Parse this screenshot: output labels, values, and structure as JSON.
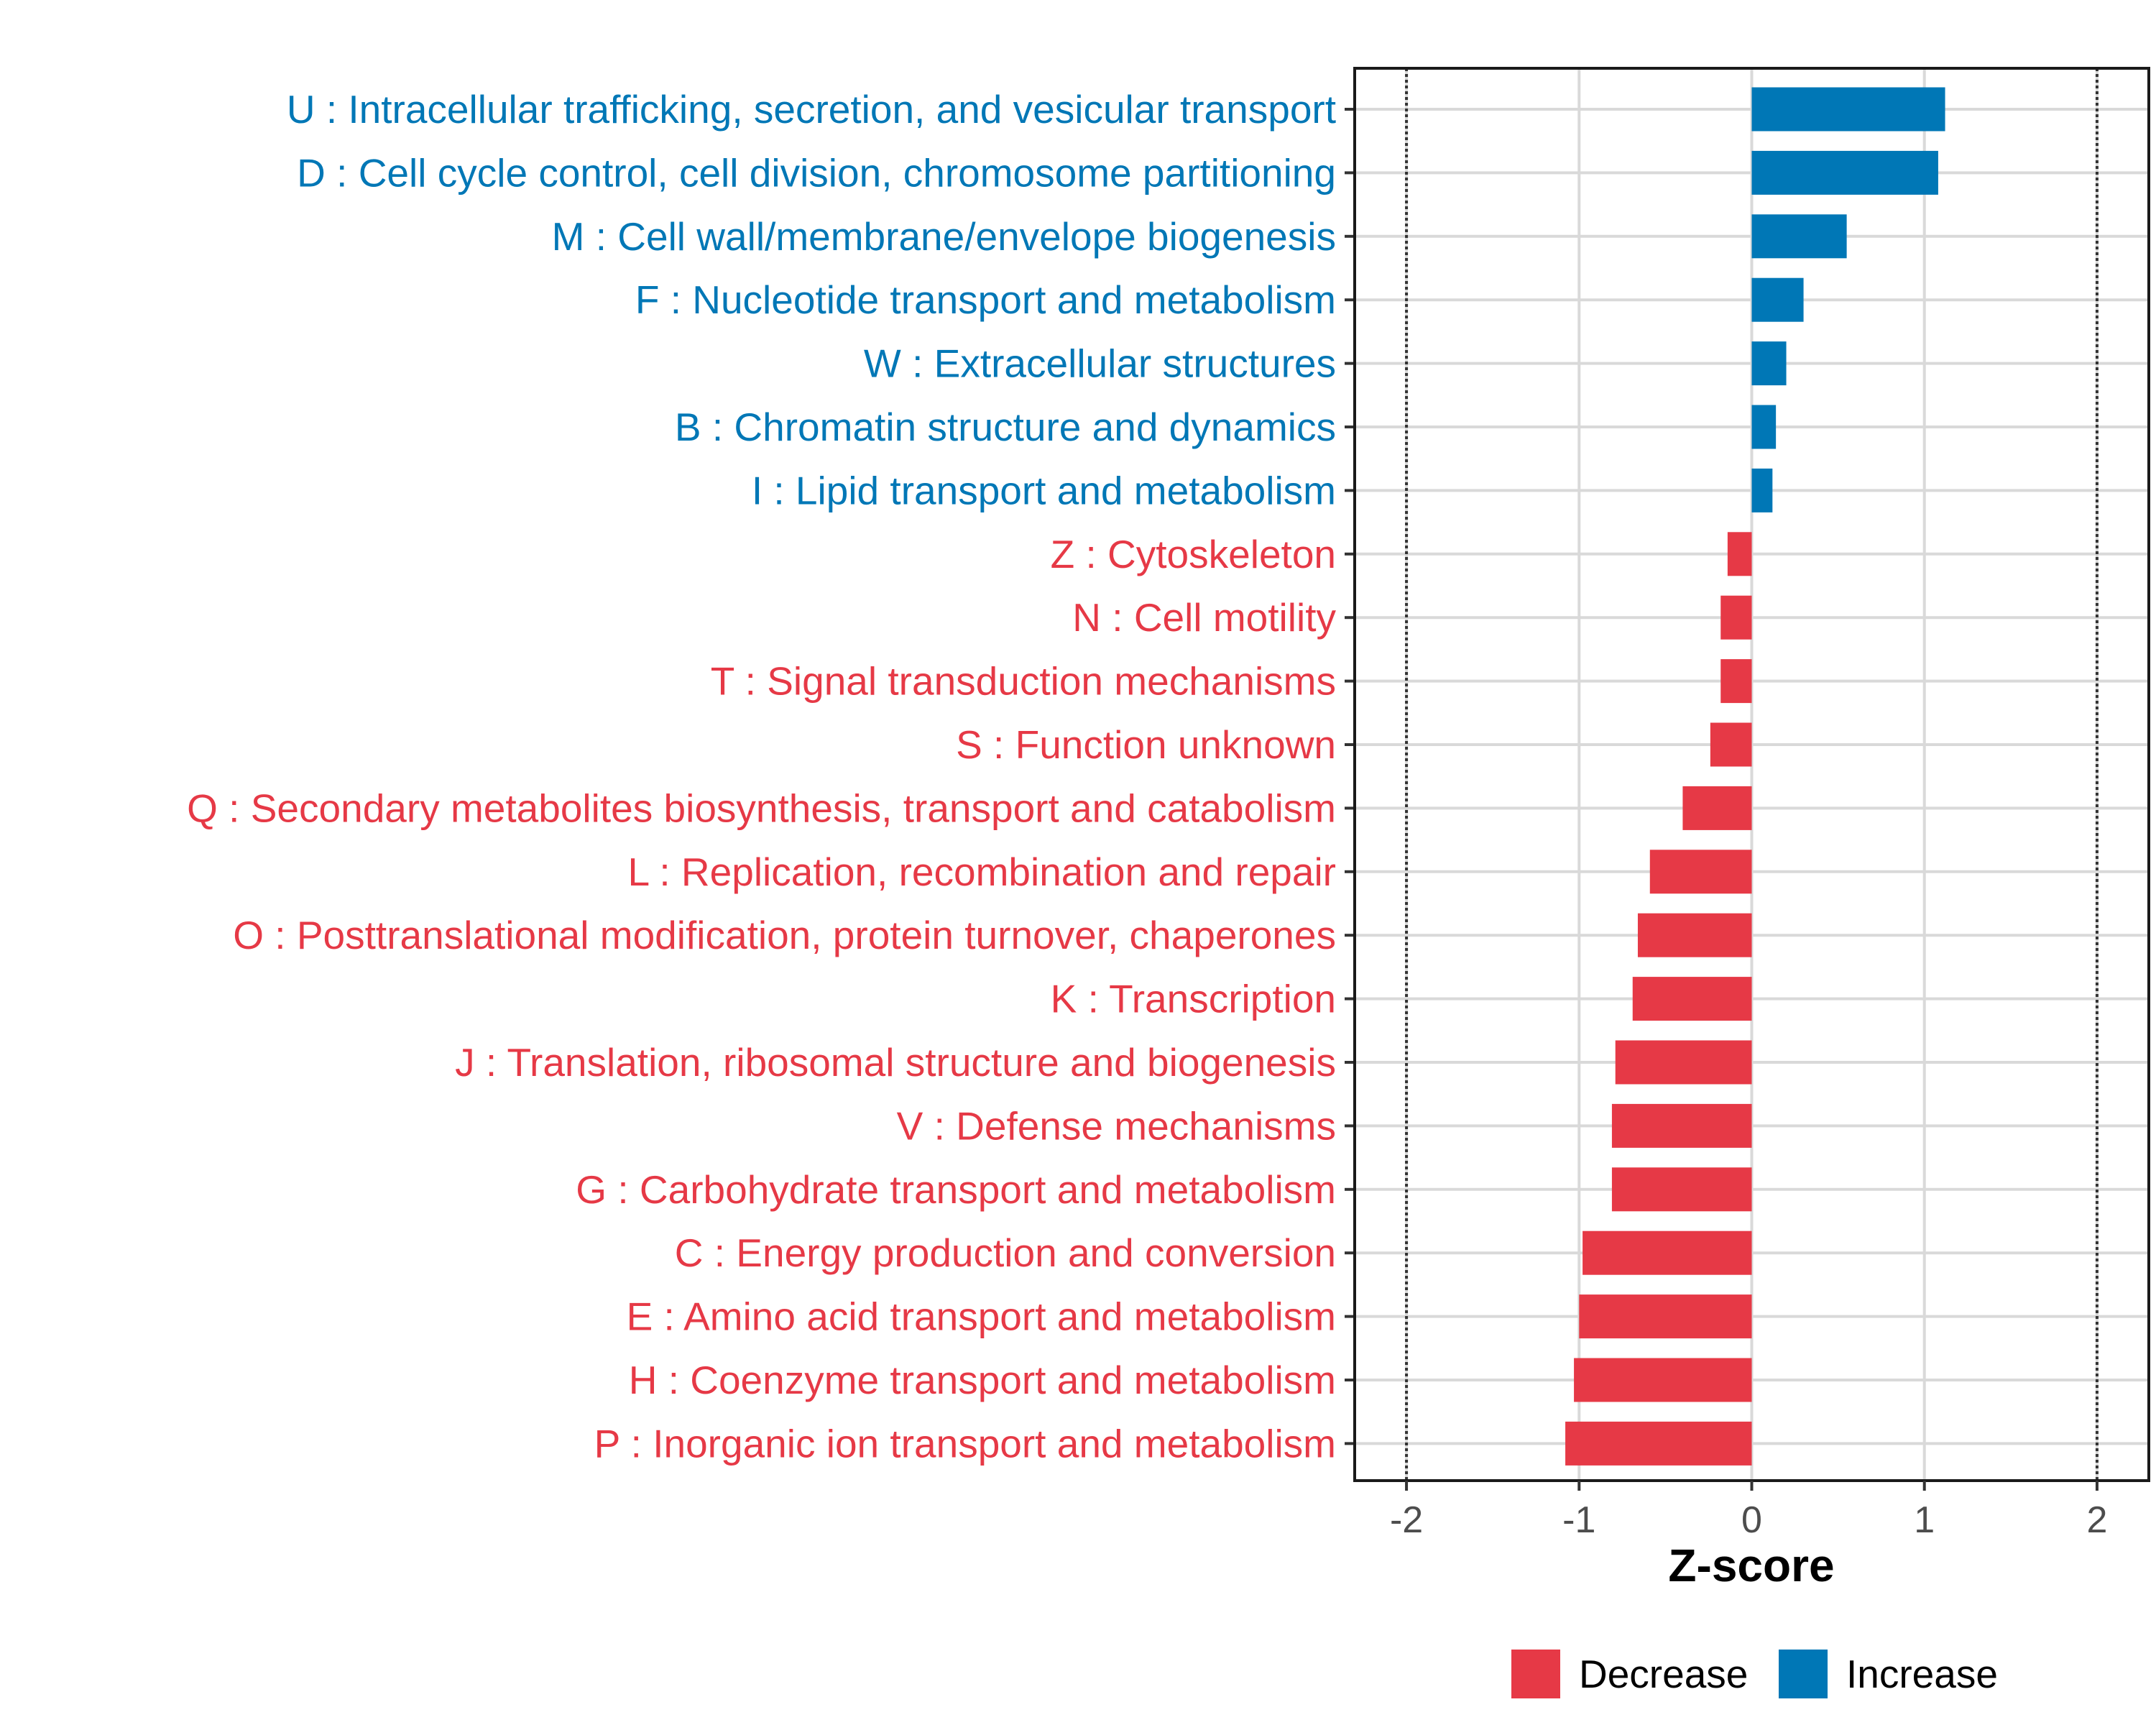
{
  "chart_data": {
    "type": "bar",
    "orientation": "horizontal",
    "xlabel": "Z-score",
    "xlim": [
      -2.3,
      2.3
    ],
    "xticks": [
      -2,
      -1,
      0,
      1,
      2
    ],
    "xtick_labels": [
      "-2",
      "-1",
      "0",
      "1",
      "2"
    ],
    "reference_lines": [
      -2,
      2
    ],
    "grid": true,
    "legend_position": "bottom",
    "colors": {
      "Decrease": "#e63946",
      "Increase": "#0077b6"
    },
    "legend": [
      {
        "label": "Decrease",
        "color": "#e63946"
      },
      {
        "label": "Increase",
        "color": "#0077b6"
      }
    ],
    "categories": [
      "U : Intracellular trafficking, secretion, and vesicular transport",
      "D : Cell cycle control, cell division, chromosome partitioning",
      "M : Cell wall/membrane/envelope biogenesis",
      "F : Nucleotide transport and metabolism",
      "W : Extracellular structures",
      "B : Chromatin structure and dynamics",
      "I : Lipid transport and metabolism",
      "Z : Cytoskeleton",
      "N : Cell motility",
      "T : Signal transduction mechanisms",
      "S : Function unknown",
      "Q : Secondary metabolites biosynthesis, transport and catabolism",
      "L : Replication, recombination and repair",
      "O : Posttranslational modification, protein turnover, chaperones",
      "K : Transcription",
      "J : Translation, ribosomal structure and biogenesis",
      "V : Defense mechanisms",
      "G : Carbohydrate transport and metabolism",
      "C : Energy production and conversion",
      "E : Amino acid transport and metabolism",
      "H : Coenzyme transport and metabolism",
      "P : Inorganic ion transport and metabolism"
    ],
    "values": [
      1.12,
      1.08,
      0.55,
      0.3,
      0.2,
      0.14,
      0.12,
      -0.14,
      -0.18,
      -0.18,
      -0.24,
      -0.4,
      -0.59,
      -0.66,
      -0.69,
      -0.79,
      -0.81,
      -0.81,
      -0.98,
      -1.0,
      -1.03,
      -1.08
    ],
    "groups": [
      "Increase",
      "Increase",
      "Increase",
      "Increase",
      "Increase",
      "Increase",
      "Increase",
      "Decrease",
      "Decrease",
      "Decrease",
      "Decrease",
      "Decrease",
      "Decrease",
      "Decrease",
      "Decrease",
      "Decrease",
      "Decrease",
      "Decrease",
      "Decrease",
      "Decrease",
      "Decrease",
      "Decrease"
    ]
  }
}
